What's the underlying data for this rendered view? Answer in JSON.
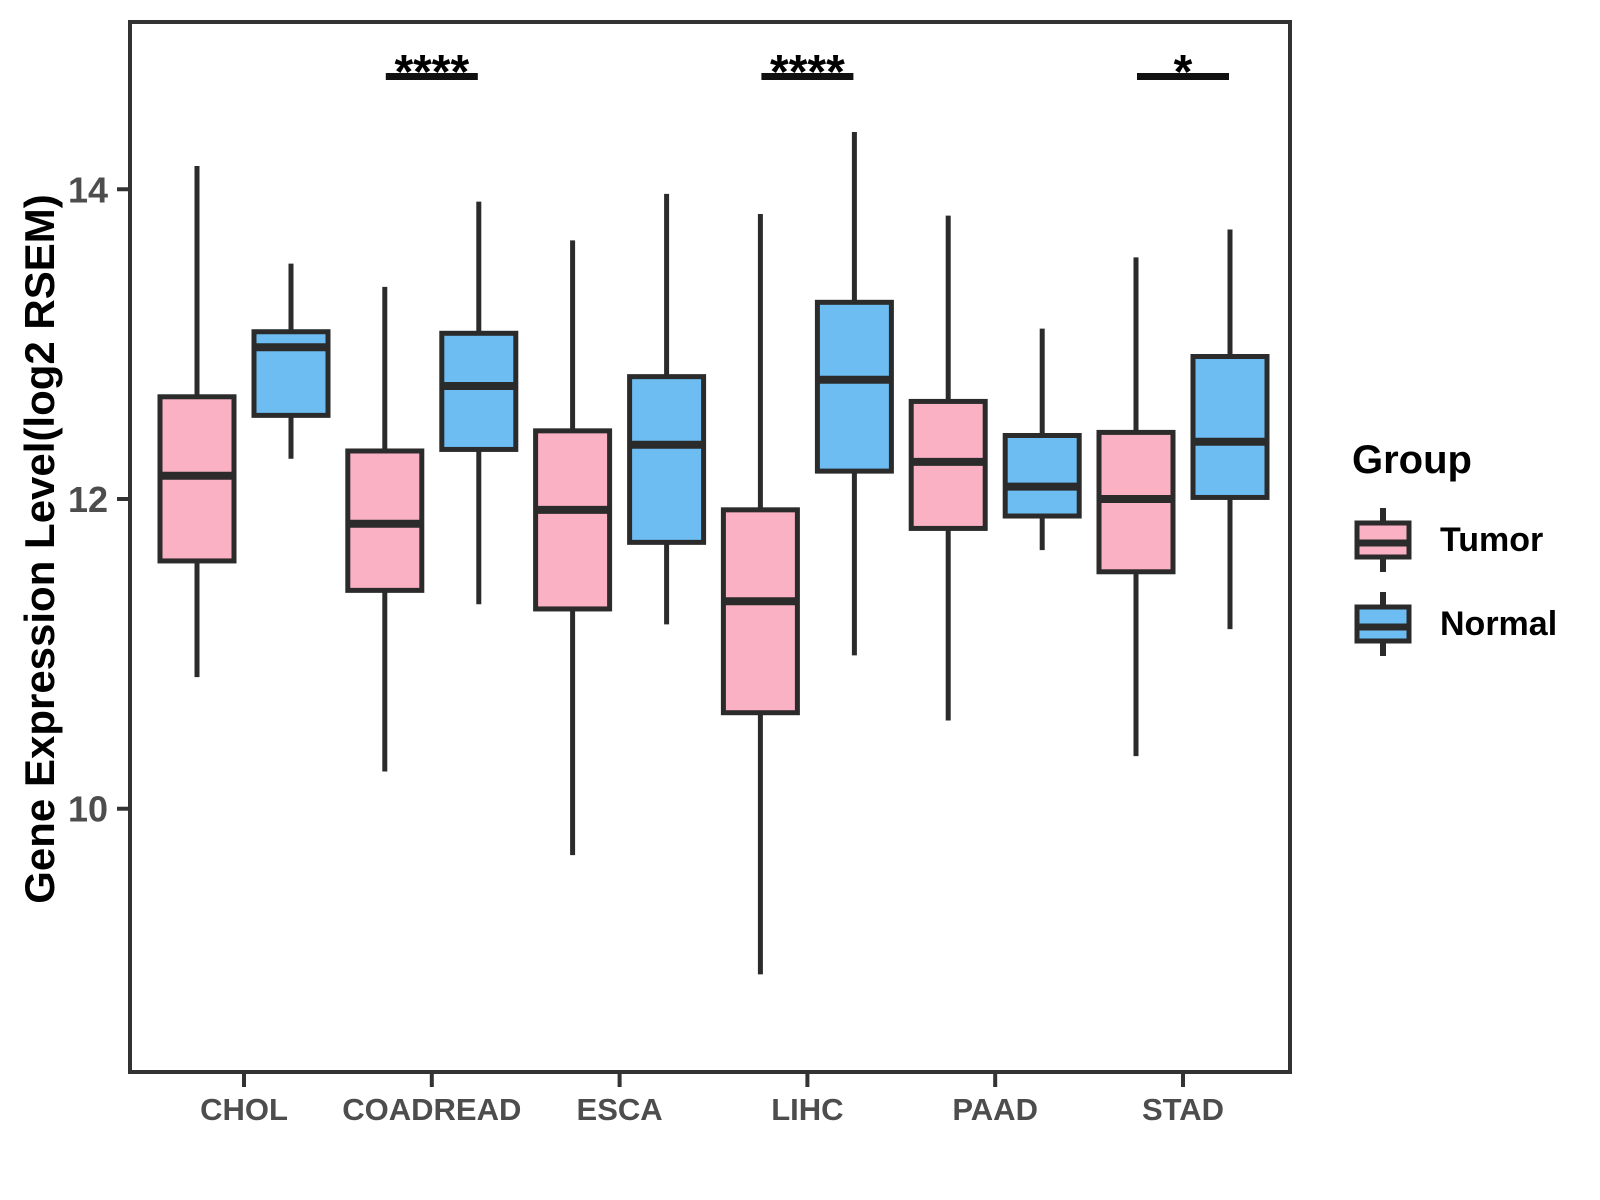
{
  "chart_data": {
    "type": "boxplot",
    "title": "",
    "xlabel": "",
    "ylabel": "Gene Expression Level(log2 RSEM)",
    "categories": [
      "CHOL",
      "COADREAD",
      "ESCA",
      "LIHC",
      "PAAD",
      "STAD"
    ],
    "groups": [
      {
        "name": "Tumor",
        "fill": "#F9B1C3"
      },
      {
        "name": "Normal",
        "fill": "#6DBDF2"
      }
    ],
    "stats_order": [
      "whisker_low",
      "q1",
      "median",
      "q3",
      "whisker_high"
    ],
    "boxes": [
      {
        "category": "CHOL",
        "Tumor": [
          10.85,
          11.6,
          12.15,
          12.66,
          14.15
        ],
        "Normal": [
          12.26,
          12.54,
          12.98,
          13.08,
          13.52
        ]
      },
      {
        "category": "COADREAD",
        "Tumor": [
          10.24,
          11.41,
          11.84,
          12.31,
          13.37
        ],
        "Normal": [
          11.32,
          12.32,
          12.73,
          13.07,
          13.92
        ]
      },
      {
        "category": "ESCA",
        "Tumor": [
          9.7,
          11.29,
          11.93,
          12.44,
          13.67
        ],
        "Normal": [
          11.19,
          11.72,
          12.35,
          12.79,
          13.97
        ]
      },
      {
        "category": "LIHC",
        "Tumor": [
          8.93,
          10.62,
          11.34,
          11.93,
          13.84
        ],
        "Normal": [
          10.99,
          12.18,
          12.77,
          13.27,
          14.37
        ]
      },
      {
        "category": "PAAD",
        "Tumor": [
          10.57,
          11.81,
          12.24,
          12.63,
          13.83
        ],
        "Normal": [
          11.67,
          11.89,
          12.08,
          12.41,
          13.1
        ]
      },
      {
        "category": "STAD",
        "Tumor": [
          10.34,
          11.53,
          12.0,
          12.43,
          13.56
        ],
        "Normal": [
          11.16,
          12.01,
          12.37,
          12.92,
          13.74
        ]
      }
    ],
    "significance": [
      {
        "category": "COADREAD",
        "label": "****"
      },
      {
        "category": "LIHC",
        "label": "****"
      },
      {
        "category": "STAD",
        "label": "*"
      }
    ],
    "yticks": [
      10,
      12,
      14
    ],
    "ylim": [
      8.3,
      15.08
    ],
    "grid": false,
    "legend": {
      "title": "Group",
      "position": "right"
    },
    "colors": {
      "box_stroke": "#2B2B2B",
      "panel_border": "#333333",
      "tick_text": "#4D4D4D",
      "significance_text": "#000000"
    }
  }
}
